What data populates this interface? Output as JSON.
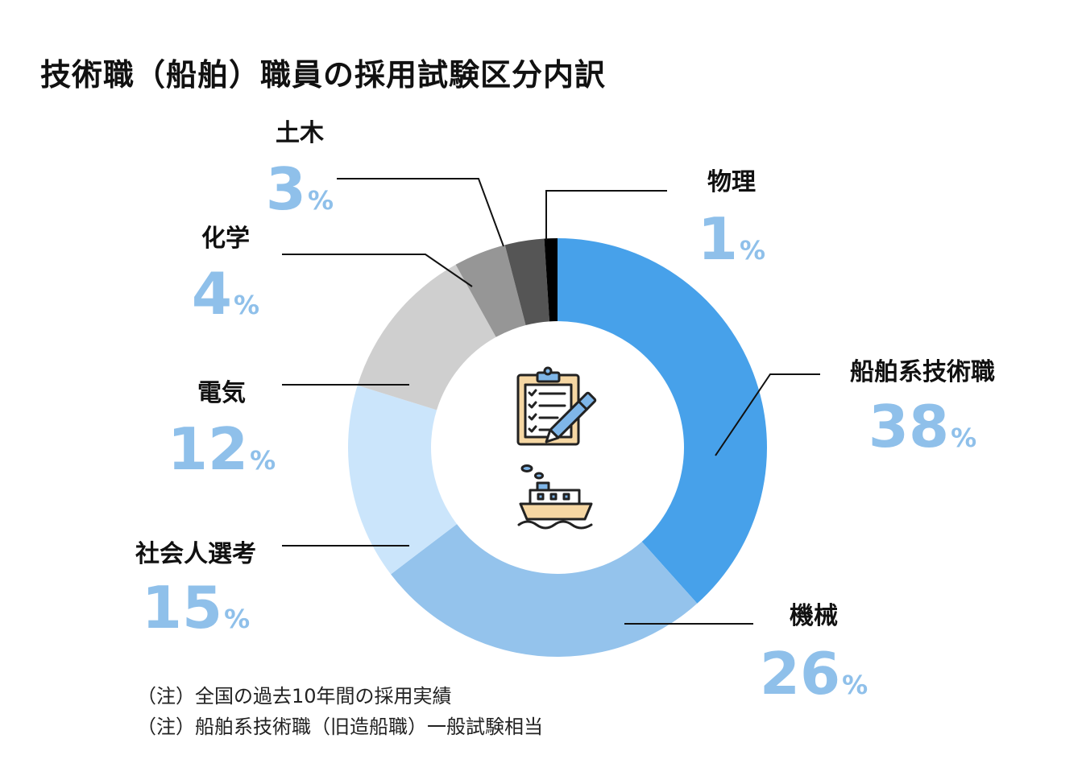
{
  "title": "技術職（船舶）職員の採用試験区分内訳",
  "notes": [
    "（注）全国の過去10年間の採用実績",
    "（注）船舶系技術職（旧造船職）一般試験相当"
  ],
  "colors": {
    "pct_text": "#8fc0ea"
  },
  "chart_data": {
    "type": "pie",
    "title": "技術職（船舶）職員の採用試験区分内訳",
    "unit": "%",
    "categories": [
      "船舶系技術職",
      "機械",
      "社会人選考",
      "電気",
      "化学",
      "土木",
      "物理"
    ],
    "values": [
      38,
      26,
      15,
      12,
      4,
      3,
      1
    ],
    "colors": [
      "#47a1ea",
      "#94c3ec",
      "#cbe5fb",
      "#cfcfcf",
      "#969696",
      "#555555",
      "#000000"
    ],
    "donut": true,
    "start": "12 o'clock",
    "direction": "clockwise",
    "center_icons": [
      "clipboard-pen-icon",
      "ship-icon"
    ]
  }
}
